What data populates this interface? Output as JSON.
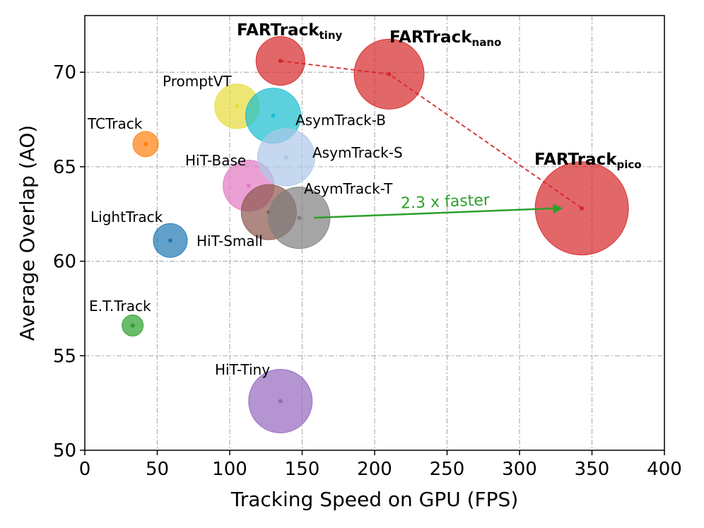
{
  "chart_data": {
    "type": "scatter",
    "title": "",
    "xlabel": "Tracking Speed on GPU (FPS)",
    "ylabel": "Average Overlap (AO)",
    "xlim": [
      0,
      400
    ],
    "ylim": [
      50,
      73
    ],
    "xticks": [
      0,
      50,
      100,
      150,
      200,
      250,
      300,
      350,
      400
    ],
    "yticks": [
      50,
      55,
      60,
      65,
      70
    ],
    "grid": true,
    "points": [
      {
        "name": "E.T.Track",
        "x": 33,
        "y": 56.6,
        "size": 1,
        "color": "#2ca02c"
      },
      {
        "name": "TCTrack",
        "x": 42,
        "y": 66.2,
        "size": 1.2,
        "color": "#ff7f0e"
      },
      {
        "name": "LightTrack",
        "x": 59,
        "y": 61.1,
        "size": 1.6,
        "color": "#1f77b4"
      },
      {
        "name": "PromptVT",
        "x": 105,
        "y": 68.2,
        "size": 2.1,
        "color": "#e6db3a"
      },
      {
        "name": "HiT-Base",
        "x": 113,
        "y": 64.0,
        "size": 2.4,
        "color": "#e377c2"
      },
      {
        "name": "HiT-Small",
        "x": 127,
        "y": 62.6,
        "size": 2.6,
        "color": "#8c564b"
      },
      {
        "name": "AsymTrack-B",
        "x": 130,
        "y": 67.7,
        "size": 2.6,
        "color": "#17becf"
      },
      {
        "name": "HiT-Tiny",
        "x": 135,
        "y": 52.6,
        "size": 3.0,
        "color": "#9467bd"
      },
      {
        "name": "AsymTrack-S",
        "x": 139,
        "y": 65.5,
        "size": 2.7,
        "color": "#aec7e8"
      },
      {
        "name": "AsymTrack-T",
        "x": 148,
        "y": 62.3,
        "size": 2.9,
        "color": "#7f7f7f"
      },
      {
        "name": "FARTrack_tiny",
        "x": 135,
        "y": 70.6,
        "size": 2.3,
        "color": "#d62728"
      },
      {
        "name": "FARTrack_nano",
        "x": 210,
        "y": 69.9,
        "size": 3.3,
        "color": "#d62728"
      },
      {
        "name": "FARTrack_pico",
        "x": 343,
        "y": 62.8,
        "size": 4.4,
        "color": "#d62728"
      }
    ],
    "labels": [
      {
        "text": "E.T.Track",
        "bold": false
      },
      {
        "text": "TCTrack",
        "bold": false
      },
      {
        "text": "LightTrack",
        "bold": false
      },
      {
        "text": "PromptVT",
        "bold": false
      },
      {
        "text": "HiT-Base",
        "bold": false
      },
      {
        "text": "HiT-Small",
        "bold": false
      },
      {
        "text": "AsymTrack-B",
        "bold": false
      },
      {
        "text": "HiT-Tiny",
        "bold": false
      },
      {
        "text": "AsymTrack-S",
        "bold": false
      },
      {
        "text": "AsymTrack-T",
        "bold": false
      },
      {
        "text": "FARTrack",
        "sub": "tiny",
        "bold": true
      },
      {
        "text": "FARTrack",
        "sub": "nano",
        "bold": true
      },
      {
        "text": "FARTrack",
        "sub": "pico",
        "bold": true
      }
    ],
    "trend_line": {
      "points": [
        [
          135,
          70.6
        ],
        [
          210,
          69.9
        ],
        [
          343,
          62.8
        ]
      ],
      "color": "#d62728",
      "style": "dashed"
    },
    "annotation": {
      "text": "2.3 x faster",
      "from": [
        158,
        62.3
      ],
      "to": [
        330,
        62.8
      ],
      "color": "#2ca02c"
    }
  }
}
